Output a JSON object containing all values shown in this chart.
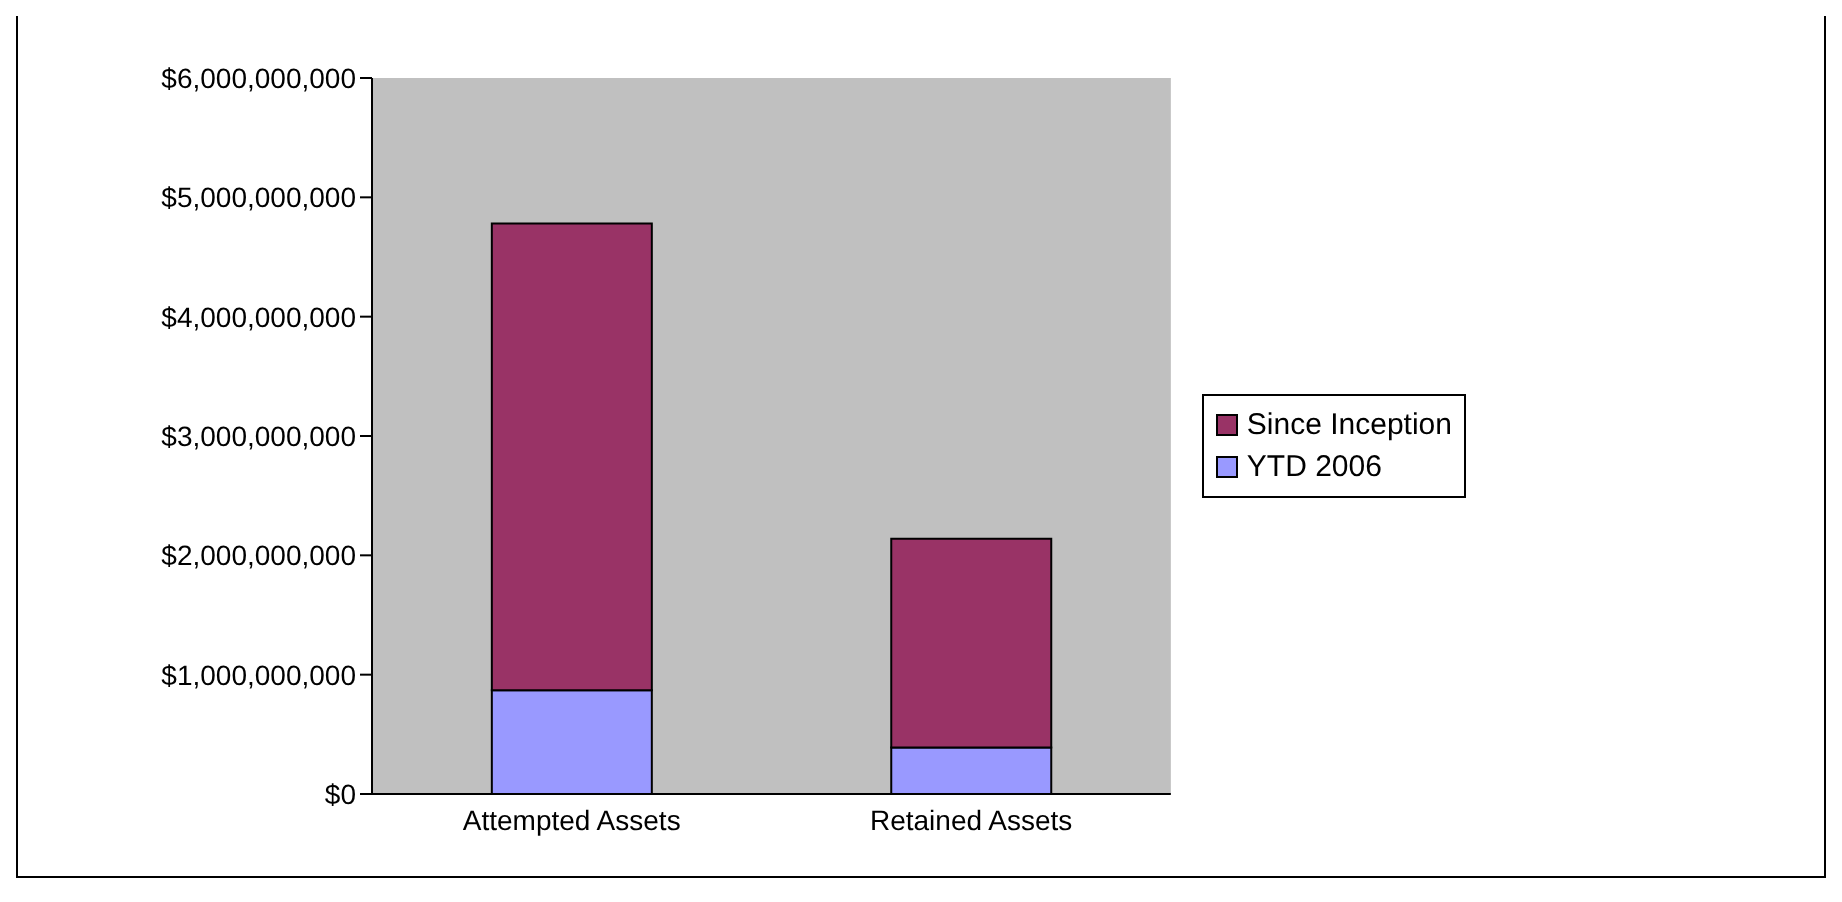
{
  "chart_data": {
    "type": "bar",
    "stacked": true,
    "categories": [
      "Attempted Assets",
      "Retained Assets"
    ],
    "series": [
      {
        "name": "YTD 2006",
        "color": "#9999ff",
        "values": [
          870000000,
          390000000
        ]
      },
      {
        "name": "Since Inception",
        "color": "#993366",
        "values": [
          3910000000,
          1750000000
        ]
      }
    ],
    "ylim": [
      0,
      6000000000
    ],
    "yticks": [
      {
        "value": 0,
        "label": "$0"
      },
      {
        "value": 1000000000,
        "label": "$1,000,000,000"
      },
      {
        "value": 2000000000,
        "label": "$2,000,000,000"
      },
      {
        "value": 3000000000,
        "label": "$3,000,000,000"
      },
      {
        "value": 4000000000,
        "label": "$4,000,000,000"
      },
      {
        "value": 5000000000,
        "label": "$5,000,000,000"
      },
      {
        "value": 6000000000,
        "label": "$6,000,000,000"
      }
    ],
    "grid": false,
    "legend": "right"
  }
}
